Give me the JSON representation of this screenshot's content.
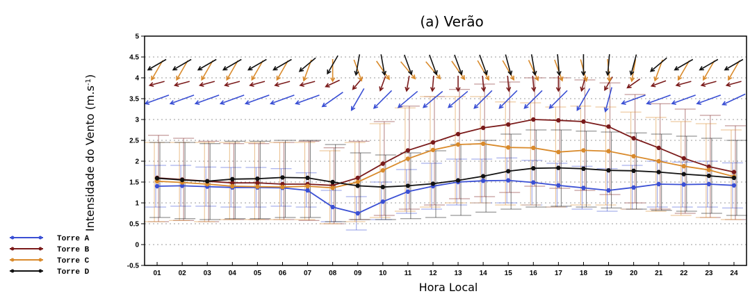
{
  "chart_data": {
    "type": "line",
    "title": "(a) Verão",
    "xlabel": "Hora Local",
    "ylabel_main": "Intensidade do Vento (m.s",
    "ylabel_sup": "-1",
    "ylabel_tail": ")",
    "ylim": [
      -0.5,
      5
    ],
    "yticks": [
      "-0.5",
      "0",
      "0.5",
      "1",
      "1.5",
      "2",
      "2.5",
      "3",
      "3.5",
      "4",
      "4.5",
      "5"
    ],
    "categories": [
      "01",
      "02",
      "03",
      "04",
      "05",
      "06",
      "07",
      "08",
      "09",
      "10",
      "11",
      "12",
      "13",
      "14",
      "15",
      "16",
      "17",
      "18",
      "19",
      "20",
      "21",
      "22",
      "23",
      "24"
    ],
    "grid": true,
    "legend_position": "left-bottom",
    "series": [
      {
        "name": "Torre A",
        "color": "#3a4fd4",
        "values": [
          1.4,
          1.41,
          1.39,
          1.37,
          1.37,
          1.36,
          1.3,
          0.9,
          0.75,
          1.03,
          1.27,
          1.4,
          1.5,
          1.53,
          1.54,
          1.49,
          1.42,
          1.36,
          1.3,
          1.37,
          1.45,
          1.44,
          1.45,
          1.42
        ],
        "lower": [
          0.9,
          0.92,
          0.92,
          0.9,
          0.9,
          0.92,
          0.9,
          0.55,
          0.35,
          0.6,
          0.75,
          0.85,
          0.95,
          1.0,
          1.0,
          0.95,
          0.9,
          0.85,
          0.8,
          0.85,
          0.9,
          0.9,
          0.9,
          0.88
        ],
        "upper": [
          1.9,
          1.9,
          1.86,
          1.85,
          1.85,
          1.82,
          1.72,
          1.3,
          1.15,
          1.5,
          1.8,
          1.95,
          2.05,
          2.05,
          2.08,
          2.02,
          1.95,
          1.88,
          1.82,
          1.9,
          2.0,
          1.98,
          2.0,
          1.96
        ],
        "arrow_angles": [
          200,
          200,
          200,
          200,
          200,
          200,
          200,
          215,
          240,
          225,
          220,
          220,
          220,
          225,
          225,
          225,
          225,
          240,
          255,
          200,
          200,
          200,
          200,
          205
        ]
      },
      {
        "name": "Torre B",
        "color": "#7a1a1a",
        "values": [
          1.6,
          1.56,
          1.52,
          1.48,
          1.48,
          1.45,
          1.45,
          1.42,
          1.6,
          1.94,
          2.26,
          2.45,
          2.65,
          2.8,
          2.88,
          3.0,
          2.98,
          2.95,
          2.83,
          2.55,
          2.32,
          2.07,
          1.87,
          1.74
        ],
        "lower": [
          0.55,
          0.58,
          0.55,
          0.6,
          0.6,
          0.6,
          0.58,
          0.5,
          0.6,
          0.7,
          0.85,
          0.95,
          1.1,
          1.15,
          1.25,
          1.4,
          1.35,
          1.3,
          1.2,
          1.0,
          0.85,
          0.75,
          0.65,
          0.6
        ],
        "upper": [
          2.62,
          2.55,
          2.48,
          2.42,
          2.42,
          2.45,
          2.48,
          2.32,
          2.48,
          2.95,
          3.32,
          3.55,
          3.72,
          3.85,
          3.9,
          4.0,
          4.0,
          3.95,
          3.88,
          3.6,
          3.38,
          3.25,
          3.1,
          2.85
        ],
        "arrow_angles": [
          195,
          195,
          195,
          195,
          195,
          195,
          195,
          205,
          230,
          250,
          260,
          265,
          270,
          275,
          275,
          275,
          270,
          255,
          240,
          215,
          200,
          195,
          195,
          195
        ]
      },
      {
        "name": "Torre C",
        "color": "#d98a2b",
        "values": [
          1.52,
          1.49,
          1.45,
          1.4,
          1.39,
          1.38,
          1.4,
          1.36,
          1.5,
          1.78,
          2.06,
          2.27,
          2.4,
          2.42,
          2.33,
          2.32,
          2.22,
          2.26,
          2.24,
          2.12,
          2.0,
          1.88,
          1.79,
          1.63
        ],
        "lower": [
          0.55,
          0.58,
          0.55,
          0.6,
          0.6,
          0.6,
          0.6,
          0.5,
          0.55,
          0.65,
          0.8,
          0.9,
          1.0,
          1.0,
          0.95,
          0.95,
          0.9,
          0.95,
          0.95,
          0.85,
          0.8,
          0.7,
          0.65,
          0.6
        ],
        "upper": [
          2.45,
          2.45,
          2.45,
          2.45,
          2.45,
          2.45,
          2.45,
          2.25,
          2.45,
          2.9,
          3.28,
          3.55,
          3.55,
          3.55,
          3.42,
          3.4,
          3.3,
          3.32,
          3.3,
          3.18,
          3.05,
          2.95,
          2.9,
          2.75
        ],
        "arrow_angles": [
          240,
          240,
          240,
          240,
          240,
          240,
          250,
          270,
          290,
          305,
          310,
          310,
          305,
          300,
          300,
          295,
          290,
          285,
          275,
          260,
          250,
          240,
          240,
          240
        ]
      },
      {
        "name": "Torre D",
        "color": "#111111",
        "values": [
          1.59,
          1.55,
          1.52,
          1.57,
          1.58,
          1.61,
          1.6,
          1.5,
          1.41,
          1.38,
          1.41,
          1.46,
          1.54,
          1.64,
          1.76,
          1.83,
          1.84,
          1.82,
          1.78,
          1.77,
          1.74,
          1.69,
          1.65,
          1.6
        ],
        "lower": [
          0.65,
          0.62,
          0.6,
          0.62,
          0.62,
          0.65,
          0.65,
          0.55,
          0.6,
          0.6,
          0.62,
          0.65,
          0.7,
          0.78,
          0.85,
          0.9,
          0.92,
          0.9,
          0.88,
          0.85,
          0.82,
          0.8,
          0.75,
          0.7
        ],
        "upper": [
          2.45,
          2.45,
          2.42,
          2.48,
          2.48,
          2.5,
          2.5,
          2.4,
          2.2,
          2.15,
          2.2,
          2.25,
          2.4,
          2.5,
          2.65,
          2.75,
          2.75,
          2.72,
          2.7,
          2.68,
          2.65,
          2.6,
          2.55,
          2.5
        ],
        "arrow_angles": [
          210,
          210,
          210,
          210,
          210,
          210,
          220,
          240,
          260,
          280,
          290,
          290,
          290,
          290,
          285,
          280,
          275,
          270,
          265,
          255,
          220,
          210,
          210,
          210
        ]
      }
    ]
  }
}
